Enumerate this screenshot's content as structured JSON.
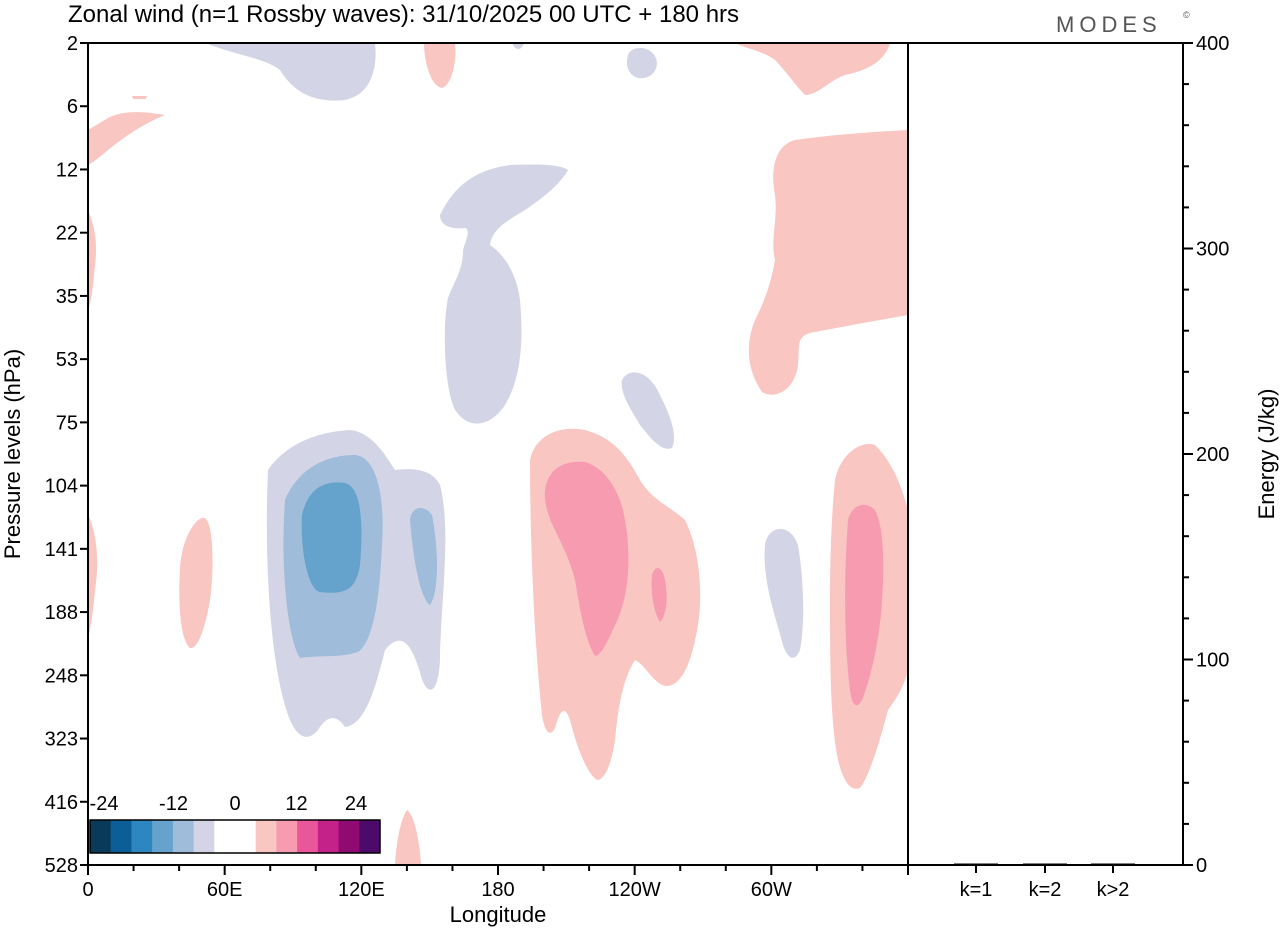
{
  "header": {
    "title": "Zonal wind (n=1 Rossby waves):  31/10/2025  00 UTC  + 180 hrs",
    "brand": "MODES",
    "brand_mark": "©"
  },
  "chart_data": [
    {
      "type": "heatmap",
      "title": "Zonal wind (n=1 Rossby waves):  31/10/2025  00 UTC  + 180 hrs",
      "xlabel": "Longitude",
      "ylabel": "Pressure levels (hPa)",
      "x_ticks": [
        "0",
        "60E",
        "120E",
        "180",
        "120W",
        "60W"
      ],
      "x_tick_degrees": [
        0,
        60,
        120,
        180,
        240,
        300
      ],
      "xlim": [
        0,
        360
      ],
      "y_ticks": [
        "2",
        "6",
        "12",
        "22",
        "35",
        "53",
        "75",
        "104",
        "141",
        "188",
        "248",
        "323",
        "416",
        "528"
      ],
      "y_order": "top-to-bottom",
      "colorbar": {
        "labels": [
          "-24",
          "-12",
          "0",
          "12",
          "24"
        ],
        "colors": [
          "#0a3a5a",
          "#0c5e96",
          "#2e86c1",
          "#65a3cc",
          "#9fbcdb",
          "#d3d5e6",
          "#ffffff",
          "#ffffff",
          "#f9c6c2",
          "#f79bb1",
          "#e9579a",
          "#c42189",
          "#8f0b72",
          "#4d0a6a"
        ]
      },
      "contour_features": [
        {
          "sign": "negative",
          "max_magnitude": 16,
          "lon_range": [
            80,
            160
          ],
          "level_range": [
            "75",
            "323"
          ]
        },
        {
          "sign": "positive",
          "max_magnitude": 12,
          "lon_range": [
            195,
            270
          ],
          "level_range": [
            "75",
            "416"
          ]
        },
        {
          "sign": "positive",
          "max_magnitude": 12,
          "lon_range": [
            330,
            360
          ],
          "level_range": [
            "104",
            "416"
          ]
        },
        {
          "sign": "negative",
          "max_magnitude": 4,
          "lon_range": [
            155,
            190
          ],
          "level_range": [
            "12",
            "75"
          ]
        },
        {
          "sign": "positive",
          "max_magnitude": 4,
          "lon_range": [
            290,
            360
          ],
          "level_range": [
            "6",
            "53"
          ]
        }
      ],
      "grid": false
    },
    {
      "type": "bar",
      "categories": [
        "k=1",
        "k=2",
        "k>2"
      ],
      "values": [
        0.5,
        0.4,
        0.4
      ],
      "ylabel": "Energy (J/kg)",
      "ylim": [
        0,
        400
      ],
      "y_ticks": [
        "0",
        "100",
        "200",
        "300",
        "400"
      ],
      "bar_color": "#000000"
    }
  ]
}
